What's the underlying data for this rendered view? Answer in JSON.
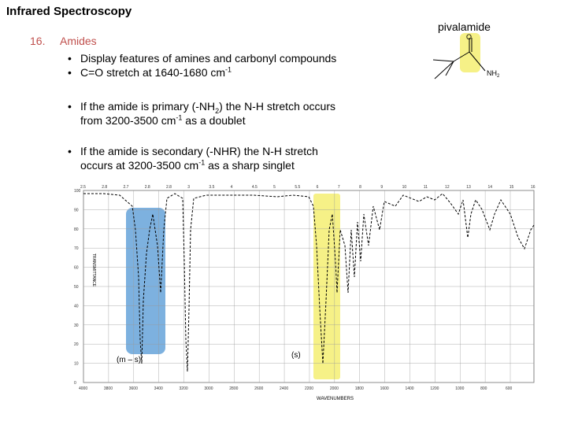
{
  "slide": {
    "title": "Infrared Spectroscopy"
  },
  "molecule": {
    "label": "pivalamide",
    "atoms": {
      "oxygen": "O",
      "amine": "NH",
      "amine_sub": "2"
    },
    "highlight_color": "#f5f07a"
  },
  "section": {
    "number": "16.",
    "title": "Amides",
    "title_color": "#c0504d"
  },
  "bullets": {
    "b1": {
      "text": "Display features of amines and carbonyl compounds"
    },
    "b2": {
      "pre": "C=O stretch at 1640-1680 cm",
      "sup": "-1"
    },
    "b3": {
      "pre": "If the amide is primary (-NH",
      "sub": "2",
      "mid": ") the N-H stretch occurs",
      "line2_pre": "from 3200-3500 cm",
      "line2_sup": "-1",
      "line2_post": " as a doublet"
    },
    "b4": {
      "line1": "If the amide is secondary (-NHR) the N-H stretch",
      "line2_pre": "occurs at 3200-3500 cm",
      "line2_sup": "-1",
      "line2_post": " as a sharp singlet"
    }
  },
  "spectrum": {
    "top_axis_ticks": [
      "2.5",
      "2.8",
      "2.7",
      "2.8",
      "2.8",
      "3",
      "3.5",
      "4",
      "4.5",
      "5",
      "5.5",
      "6",
      "7",
      "8",
      "9",
      "10",
      "11",
      "12",
      "13",
      "14",
      "15",
      "16"
    ],
    "bottom_axis_ticks": [
      "4000",
      "3800",
      "3600",
      "3400",
      "3200",
      "3000",
      "2800",
      "2600",
      "2400",
      "2200",
      "2000",
      "1800",
      "1600",
      "1400",
      "1200",
      "1000",
      "800",
      "600"
    ],
    "left_axis_ticks": [
      "100",
      "90",
      "80",
      "70",
      "60",
      "50",
      "40",
      "30",
      "20",
      "10",
      "0"
    ],
    "xlabel": "WAVENUMBERS",
    "ylabel": "TRANSMITTANCE",
    "nh_region": {
      "label": "(m – s)",
      "color": "#6fa8dc"
    },
    "co_region": {
      "label": "(s)",
      "color": "#f5f07a"
    }
  }
}
